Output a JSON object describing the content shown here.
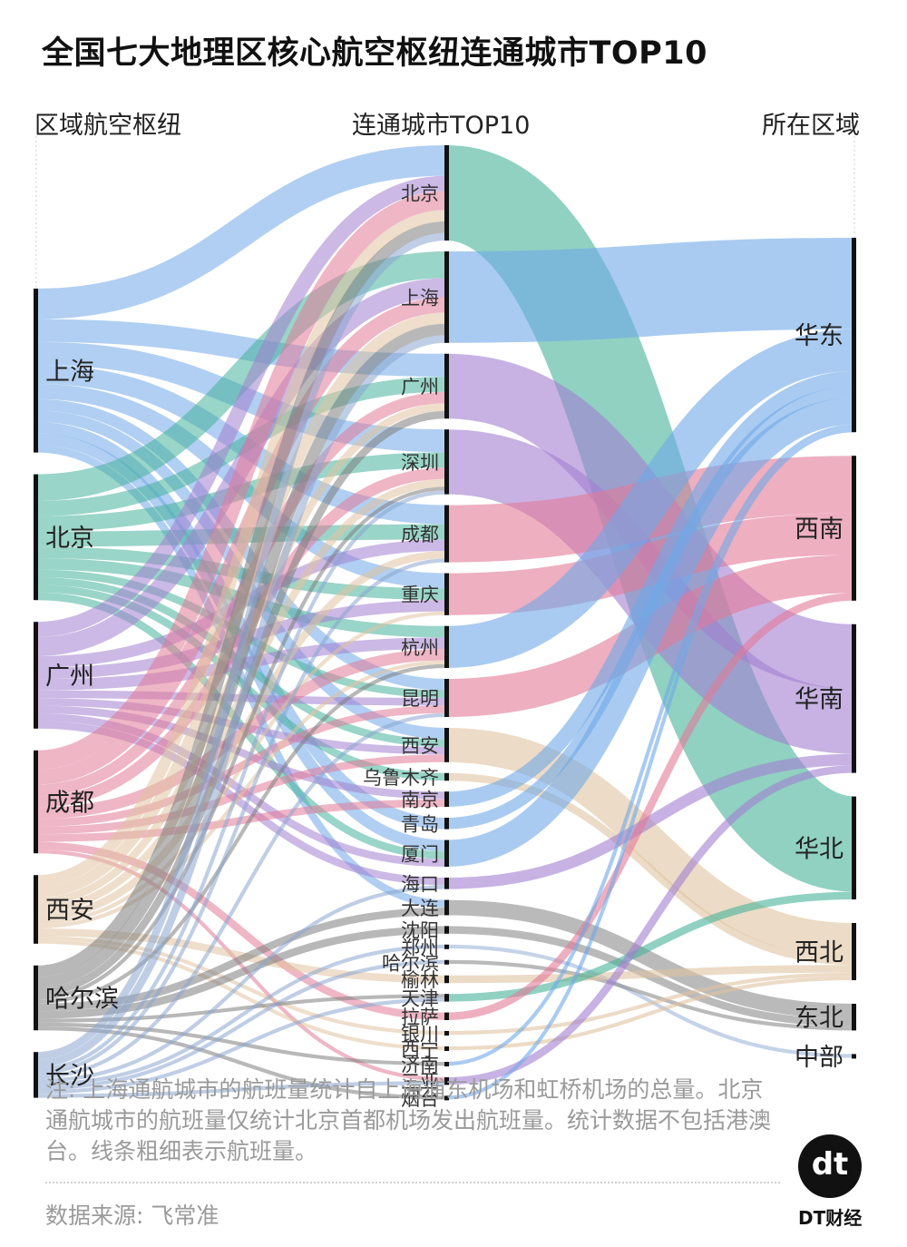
{
  "title": "全国七大地理区核心航空枢纽连通城市TOP10",
  "columns": {
    "left": "区域航空枢纽",
    "middle": "连通城市TOP10",
    "right": "所在区域"
  },
  "note": "注: 上海通航城市的航班量统计自上海浦东机场和虹桥机场的总量。北京通航城市的航班量仅统计北京首都机场发出航班量。统计数据不包括港澳台。线条粗细表示航班量。",
  "source": "数据来源: 飞常准",
  "logo": {
    "mark": "dt",
    "name": "DT财经"
  },
  "colors": {
    "上海": "#6fa8e8",
    "北京": "#46b39a",
    "广州": "#a27fd0",
    "成都": "#e27a98",
    "西安": "#e0c3a0",
    "哈尔滨": "#7d7d7d",
    "长沙": "#8aa6d0",
    "华东": "#6fa8e8",
    "华北": "#46b39a",
    "华南": "#a27fd0",
    "西南": "#e27a98",
    "西北": "#e0c3a0",
    "东北": "#8c8c8c",
    "中部": "#9fb6d8"
  },
  "chart_data": {
    "type": "sankey",
    "left_nodes": [
      "上海",
      "北京",
      "广州",
      "成都",
      "西安",
      "哈尔滨",
      "长沙"
    ],
    "middle_nodes": [
      "北京",
      "上海",
      "广州",
      "深圳",
      "成都",
      "重庆",
      "杭州",
      "昆明",
      "西安",
      "乌鲁木齐",
      "南京",
      "青岛",
      "厦门",
      "海口",
      "大连",
      "沈阳",
      "郑州",
      "哈尔滨",
      "榆林",
      "天津",
      "拉萨",
      "银川",
      "西宁",
      "济南",
      "三亚",
      "烟台"
    ],
    "right_nodes": [
      "华东",
      "西南",
      "华南",
      "华北",
      "西北",
      "东北",
      "中部"
    ],
    "city_region": {
      "北京": "华北",
      "上海": "华东",
      "广州": "华南",
      "深圳": "华南",
      "成都": "西南",
      "重庆": "西南",
      "杭州": "华东",
      "昆明": "西南",
      "西安": "西北",
      "乌鲁木齐": "西北",
      "南京": "华东",
      "青岛": "华东",
      "厦门": "华东",
      "海口": "华南",
      "大连": "东北",
      "沈阳": "东北",
      "郑州": "中部",
      "哈尔滨": "东北",
      "榆林": "西北",
      "天津": "华北",
      "拉萨": "西南",
      "银川": "西北",
      "西宁": "西北",
      "济南": "华东",
      "三亚": "华南",
      "烟台": "华东"
    },
    "flows": [
      {
        "hub": "上海",
        "city": "北京",
        "value": 8
      },
      {
        "hub": "上海",
        "city": "广州",
        "value": 6
      },
      {
        "hub": "上海",
        "city": "深圳",
        "value": 6
      },
      {
        "hub": "上海",
        "city": "成都",
        "value": 5
      },
      {
        "hub": "上海",
        "city": "重庆",
        "value": 4
      },
      {
        "hub": "上海",
        "city": "西安",
        "value": 3
      },
      {
        "hub": "上海",
        "city": "昆明",
        "value": 3
      },
      {
        "hub": "上海",
        "city": "厦门",
        "value": 3
      },
      {
        "hub": "上海",
        "city": "青岛",
        "value": 3
      },
      {
        "hub": "上海",
        "city": "大连",
        "value": 2
      },
      {
        "hub": "北京",
        "city": "上海",
        "value": 7
      },
      {
        "hub": "北京",
        "city": "广州",
        "value": 4
      },
      {
        "hub": "北京",
        "city": "深圳",
        "value": 4
      },
      {
        "hub": "北京",
        "city": "成都",
        "value": 4
      },
      {
        "hub": "北京",
        "city": "杭州",
        "value": 3
      },
      {
        "hub": "北京",
        "city": "重庆",
        "value": 3
      },
      {
        "hub": "北京",
        "city": "西安",
        "value": 2
      },
      {
        "hub": "北京",
        "city": "昆明",
        "value": 2
      },
      {
        "hub": "北京",
        "city": "乌鲁木齐",
        "value": 2
      },
      {
        "hub": "北京",
        "city": "厦门",
        "value": 2
      },
      {
        "hub": "广州",
        "city": "上海",
        "value": 5
      },
      {
        "hub": "广州",
        "city": "北京",
        "value": 4
      },
      {
        "hub": "广州",
        "city": "成都",
        "value": 3
      },
      {
        "hub": "广州",
        "city": "杭州",
        "value": 3
      },
      {
        "hub": "广州",
        "city": "重庆",
        "value": 3
      },
      {
        "hub": "广州",
        "city": "海口",
        "value": 2
      },
      {
        "hub": "广州",
        "city": "南京",
        "value": 2
      },
      {
        "hub": "广州",
        "city": "昆明",
        "value": 2
      },
      {
        "hub": "广州",
        "city": "西安",
        "value": 2
      },
      {
        "hub": "广州",
        "city": "厦门",
        "value": 2
      },
      {
        "hub": "成都",
        "city": "北京",
        "value": 5
      },
      {
        "hub": "成都",
        "city": "上海",
        "value": 4
      },
      {
        "hub": "成都",
        "city": "广州",
        "value": 3
      },
      {
        "hub": "成都",
        "city": "深圳",
        "value": 3
      },
      {
        "hub": "成都",
        "city": "杭州",
        "value": 3
      },
      {
        "hub": "成都",
        "city": "昆明",
        "value": 2
      },
      {
        "hub": "成都",
        "city": "西安",
        "value": 2
      },
      {
        "hub": "成都",
        "city": "拉萨",
        "value": 2
      },
      {
        "hub": "成都",
        "city": "南京",
        "value": 2
      },
      {
        "hub": "成都",
        "city": "三亚",
        "value": 1
      },
      {
        "hub": "西安",
        "city": "北京",
        "value": 3
      },
      {
        "hub": "西安",
        "city": "上海",
        "value": 3
      },
      {
        "hub": "西安",
        "city": "广州",
        "value": 2
      },
      {
        "hub": "西安",
        "city": "深圳",
        "value": 2
      },
      {
        "hub": "西安",
        "city": "成都",
        "value": 2
      },
      {
        "hub": "西安",
        "city": "榆林",
        "value": 2
      },
      {
        "hub": "西安",
        "city": "银川",
        "value": 1
      },
      {
        "hub": "西安",
        "city": "西宁",
        "value": 1
      },
      {
        "hub": "西安",
        "city": "重庆",
        "value": 1
      },
      {
        "hub": "西安",
        "city": "杭州",
        "value": 1
      },
      {
        "hub": "哈尔滨",
        "city": "北京",
        "value": 3
      },
      {
        "hub": "哈尔滨",
        "city": "上海",
        "value": 3
      },
      {
        "hub": "哈尔滨",
        "city": "广州",
        "value": 2
      },
      {
        "hub": "哈尔滨",
        "city": "大连",
        "value": 2
      },
      {
        "hub": "哈尔滨",
        "city": "沈阳",
        "value": 2
      },
      {
        "hub": "哈尔滨",
        "city": "深圳",
        "value": 1
      },
      {
        "hub": "哈尔滨",
        "city": "杭州",
        "value": 1
      },
      {
        "hub": "哈尔滨",
        "city": "济南",
        "value": 1
      },
      {
        "hub": "哈尔滨",
        "city": "烟台",
        "value": 1
      },
      {
        "hub": "哈尔滨",
        "city": "天津",
        "value": 1
      },
      {
        "hub": "长沙",
        "city": "北京",
        "value": 2
      },
      {
        "hub": "长沙",
        "city": "上海",
        "value": 2
      },
      {
        "hub": "长沙",
        "city": "深圳",
        "value": 1
      },
      {
        "hub": "长沙",
        "city": "成都",
        "value": 1
      },
      {
        "hub": "长沙",
        "city": "海口",
        "value": 1
      },
      {
        "hub": "长沙",
        "city": "昆明",
        "value": 1
      },
      {
        "hub": "长沙",
        "city": "哈尔滨",
        "value": 1
      },
      {
        "hub": "长沙",
        "city": "郑州",
        "value": 1
      },
      {
        "hub": "长沙",
        "city": "天津",
        "value": 1
      },
      {
        "hub": "长沙",
        "city": "三亚",
        "value": 1
      }
    ]
  }
}
